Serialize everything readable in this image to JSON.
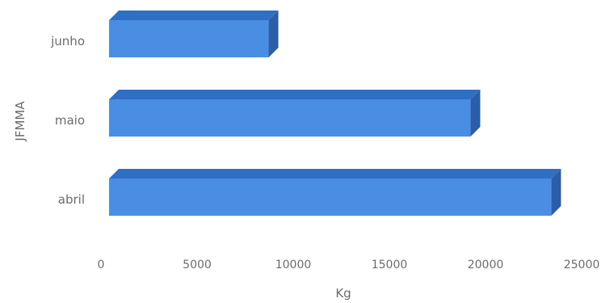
{
  "chart_data": {
    "type": "bar",
    "orientation": "horizontal",
    "style": "3d",
    "categories": [
      "abril",
      "maio",
      "junho"
    ],
    "values": [
      23000,
      18800,
      8300
    ],
    "xlabel": "Kg",
    "ylabel": "JFMMA",
    "xlim": [
      0,
      25000
    ],
    "xticks": [
      0,
      5000,
      10000,
      15000,
      20000,
      25000
    ],
    "grid": false,
    "legend": "none",
    "bar_color": "#4a8ee4",
    "bar_top_color": "#2f6fc4",
    "bar_side_color": "#2a5ea8"
  }
}
